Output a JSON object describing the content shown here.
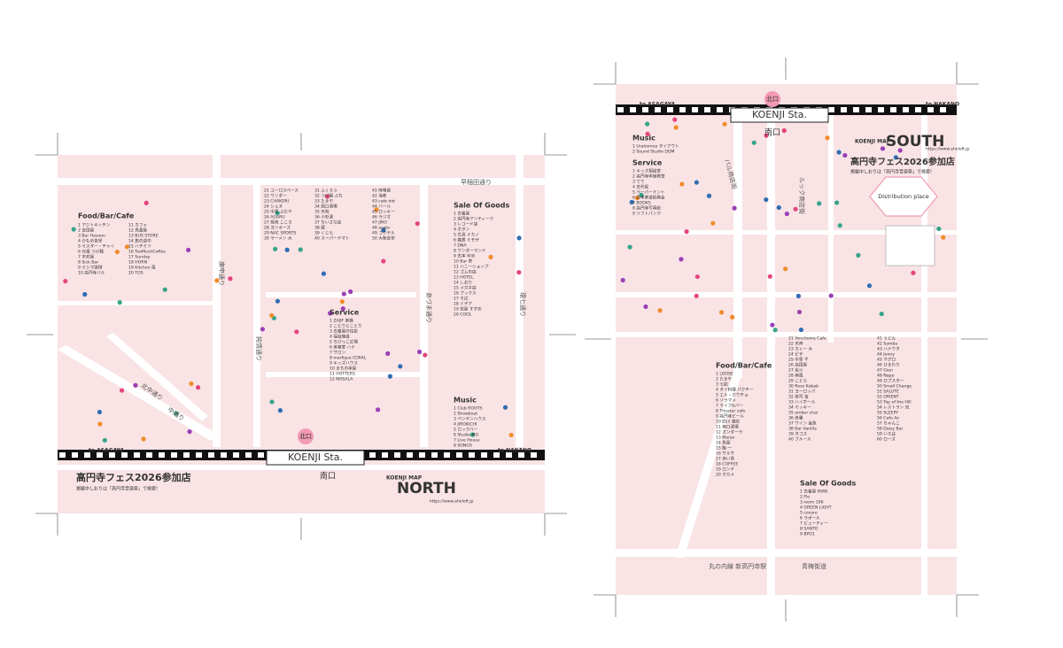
{
  "sheets": [
    {
      "title": "高円寺フェス2026参加店",
      "subtitle": "掲載中しおりは「高円寺音楽祭」で検索!",
      "logo_small": "KOENJI MAP",
      "logo": "NORTH",
      "url": "https://www.eheleft.jp",
      "station": "KOENJI Sta.",
      "exit_north": "北口",
      "exit_south": "南口",
      "west": "to ASAGAYA",
      "east": "to NAKANO",
      "streets": [
        "早稲田通り",
        "庚申通り",
        "純情通り",
        "あづま通り",
        "環七通り",
        "北中通り",
        "中通り"
      ],
      "lists": [
        {
          "heading": "Food/Bar/Cafe",
          "items": [
            "1 アジトキッチン",
            "2 吉田屋",
            "3 Bar Hasoon",
            "4 かもめ食堂",
            "5 ミスター・チャイ",
            "6 元祖 つけ麺",
            "7 木村屋",
            "8 Sick Bar",
            "9 ミシマ珈琲",
            "10 高円寺バル",
            "11 カフェ",
            "12 鳥貴族",
            "13 BUS STORE",
            "14 旅の途中",
            "15 ハチミツ",
            "16 TooMuchCoffee",
            "17 Sunday",
            "18 HORN",
            "19 Kitchen 風",
            "20 TOS",
            "21 ユーロスペース",
            "22 ワンダー",
            "23 CHAKORI",
            "24 シェヌ",
            "25 中華 ぶたや",
            "26 AGARU",
            "27 焼肉 こころ",
            "28 ヨンキーズ",
            "29 NAC SPORTS",
            "30 ラーメン 大",
            "31 ふくろう",
            "32 つけ麺 ぶち",
            "33 たまや",
            "34 西口酒場",
            "35 天狗",
            "36 小杉湯",
            "37 ちいさな店",
            "38 蔵",
            "39 くじら",
            "40 スーパーヤマト",
            "41 味噌屋",
            "42 海老",
            "43 cafe dot",
            "44 バール",
            "45 ロッキー",
            "46 ラジオ",
            "47 JIRO",
            "48 asato",
            "49 コクテル",
            "50 大陸食堂"
          ]
        },
        {
          "heading": "Service",
          "items": [
            "1 ZAJIF 楽器",
            "2 ことりとことり",
            "3 古着屋の住処",
            "4 福祉施設",
            "5 ちびっこ広場",
            "6 美容室 ハナ",
            "7 サロン",
            "8 marKaso CORAL",
            "9 キッズハウス",
            "10 まちの本屋",
            "11 HOTTERS",
            "12 MASALA"
          ]
        },
        {
          "heading": "Sale Of Goods",
          "items": [
            "1 古着屋",
            "2 高円寺アンティーク",
            "3 レコード店",
            "4 ボタン",
            "5 文具 ナカノ",
            "6 雑貨 ミモザ",
            "7 DNA",
            "8 ワンダーランド",
            "9 古本 ゆめ",
            "10 Bar 壱",
            "11 ハニーショップ",
            "12 ゴムの店",
            "13 HOTEL",
            "14 しおり",
            "15 メガネ店",
            "16 ブックス",
            "17 そば",
            "18 イデア",
            "19 花屋 すずめ",
            "20 COOL"
          ]
        },
        {
          "heading": "Music",
          "items": [
            "1 Club ROOTS",
            "2 Showboat",
            "3 ペンギンハウス",
            "4 JIROKICHI",
            "5 ロックバー",
            "6 Studio MO",
            "7 Live House",
            "8 SONGS"
          ]
        }
      ]
    },
    {
      "title": "高円寺フェス2026参加店",
      "subtitle": "掲載中しおりは「高円寺音楽祭」で検索!",
      "logo_small": "KOENJI MAP",
      "logo": "SOUTH",
      "url": "https://www.eheleft.jp",
      "station": "KOENJI Sta.",
      "exit_north": "北口",
      "exit_south": "南口",
      "west": "to ASAGAYA",
      "east": "to NAKANO",
      "streets": [
        "パル商店街",
        "ルック商店街",
        "丸の内線 新高円寺駅",
        "青梅街道"
      ],
      "distribution": "Distribution place",
      "lists": [
        {
          "heading": "Music",
          "items": [
            "1 Urahomeo タイアウト",
            "2 Sound Studio DOM"
          ]
        },
        {
          "heading": "Service",
          "items": [
            "1 キッズ相談室",
            "2 高円寺体操教室",
            "3 てて",
            "4 古代星",
            "5 ペーパーミント",
            "6 日本茶道振興会",
            "7 BOOKS",
            "8 高円寺写真館",
            "9 ソフトバンク"
          ]
        },
        {
          "heading": "Food/Bar/Cafe",
          "items": [
            "1 LOOSE",
            "2 たまや",
            "3 七助",
            "4 タイ料理 パクチー",
            "5 エル・ガウチョ",
            "6 ソラマメ",
            "7 ライブ&バー",
            "8 Theater cafe",
            "9 高円寺ビール",
            "10 四川 雑炊",
            "11 南口酒場",
            "12 ガンダーラ",
            "13 Marzo",
            "14 魚屋",
            "15 鮨 一",
            "16 サルサ",
            "17 赤い鳥",
            "18 COFFEE",
            "19 ロンテ",
            "20 オカメ",
            "21 Yonchome Cafe",
            "22 天神",
            "23 カレー 大",
            "24 ピザ",
            "25 中華 千",
            "26 高田屋",
            "27 炭火",
            "28 南風",
            "29 ことら",
            "30 Rose Kebab",
            "31 ヨーロッパ",
            "32 寿司 宝",
            "33 ハイボール",
            "34 ミッキー",
            "35 amber chai",
            "36 赤垂",
            "37 ワイン 金魚",
            "38 Bar Vanilla",
            "39 タコス",
            "40 ブルース",
            "41 うどん",
            "42 Samba",
            "43 ハナウタ",
            "44 Jonny",
            "45 マグロ",
            "46 ひまわり",
            "47 Gion",
            "48 Napa",
            "49 ロブスター",
            "50 Small Change",
            "51 SALUTE",
            "52 ORIENT",
            "53 Top of the Hill",
            "54 レストラン 光",
            "55 SLEEPY",
            "56 Cafe Ao",
            "57 ちゃんこ",
            "58 Daisy Bar",
            "59 いろは",
            "60 ローズ"
          ]
        },
        {
          "heading": "Sale Of Goods",
          "items": [
            "1 古着屋 PARK",
            "2 Flo",
            "3 room 106",
            "4 GREEN LIGHT",
            "5 cocoro",
            "6 ラポール",
            "7 ビューティー",
            "8 SANTO",
            "9 BPO1"
          ]
        }
      ]
    }
  ]
}
